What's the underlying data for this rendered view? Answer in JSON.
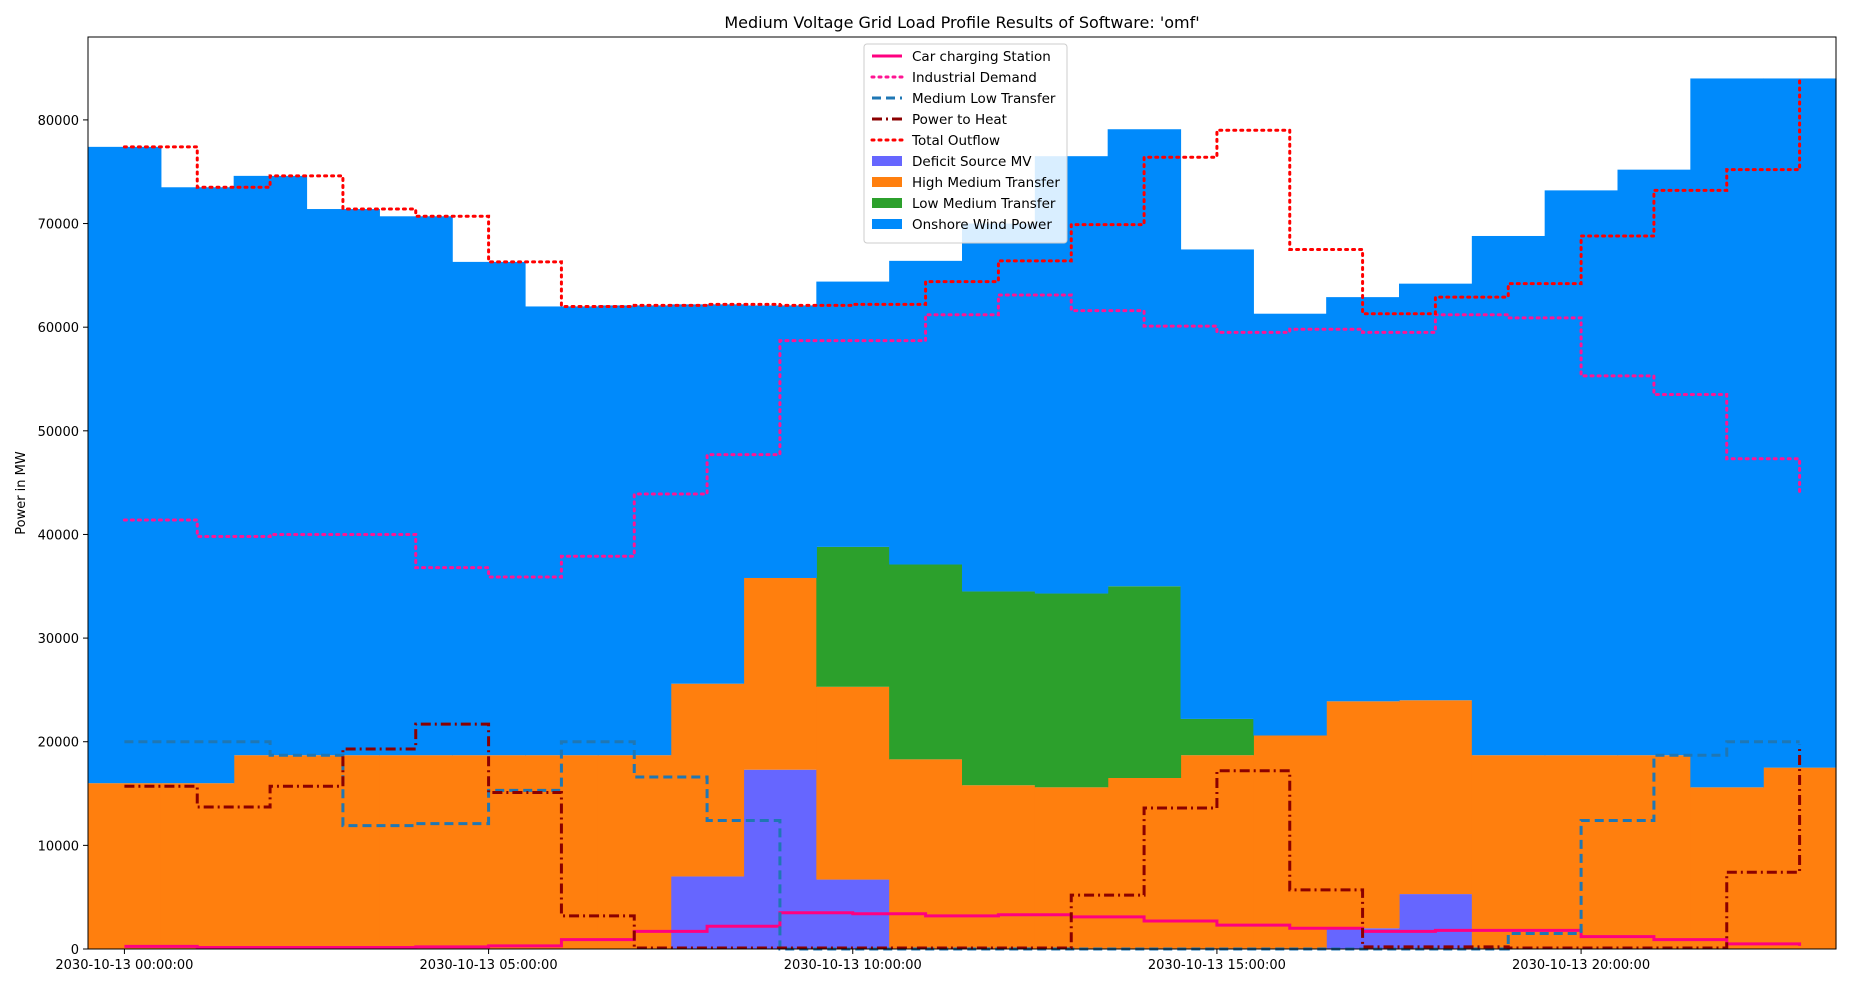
{
  "chart_data": {
    "type": "area",
    "title": "Medium Voltage Grid Load Profile Results of Software: 'omf'",
    "ylabel": "Power in MW",
    "xlabel": "",
    "ylim": [
      0,
      88000
    ],
    "x_hours": [
      0,
      1,
      2,
      3,
      4,
      5,
      6,
      7,
      8,
      9,
      10,
      11,
      12,
      13,
      14,
      15,
      16,
      17,
      18,
      19,
      20,
      21,
      22,
      23
    ],
    "xtick_hours": [
      0,
      5,
      10,
      15,
      20
    ],
    "xtick_labels": [
      "2030-10-13 00:00:00",
      "2030-10-13 05:00:00",
      "2030-10-13 10:00:00",
      "2030-10-13 15:00:00",
      "2030-10-13 20:00:00"
    ],
    "yticks": [
      0,
      10000,
      20000,
      30000,
      40000,
      50000,
      60000,
      70000,
      80000
    ],
    "ytick_labels": [
      "0",
      "10000",
      "20000",
      "30000",
      "40000",
      "50000",
      "60000",
      "70000",
      "80000"
    ],
    "grid": false,
    "legend_position": "upper-center",
    "stack": [
      {
        "name": "Deficit Source MV",
        "color": "#6666ff",
        "values": [
          0,
          0,
          0,
          0,
          0,
          0,
          0,
          0,
          7000,
          17300,
          6700,
          0,
          0,
          0,
          0,
          0,
          0,
          2000,
          5300,
          0,
          0,
          0,
          0,
          0
        ]
      },
      {
        "name": "High Medium Transfer",
        "color": "#ff7f0e",
        "values": [
          16000,
          16000,
          18700,
          18700,
          18700,
          18700,
          18700,
          18700,
          18600,
          18500,
          18600,
          18300,
          15800,
          15600,
          16500,
          18700,
          20600,
          21900,
          18700,
          18700,
          18700,
          18700,
          15600,
          17500
        ]
      },
      {
        "name": "Low Medium Transfer",
        "color": "#2ca02c",
        "values": [
          0,
          0,
          0,
          0,
          0,
          0,
          0,
          0,
          0,
          0,
          13500,
          18800,
          18700,
          18700,
          18500,
          3500,
          0,
          0,
          0,
          0,
          0,
          0,
          0,
          0
        ]
      },
      {
        "name": "Onshore Wind Power",
        "color": "#008afb",
        "values": [
          61400,
          57500,
          55900,
          52700,
          52000,
          47600,
          43300,
          43400,
          36600,
          26300,
          25600,
          29300,
          35500,
          42200,
          44100,
          45300,
          40700,
          39000,
          40200,
          50100,
          54500,
          56500,
          68400,
          66500
        ]
      }
    ],
    "lines": [
      {
        "name": "Car charging Station",
        "color": "#ff0080",
        "style": "solid",
        "values": [
          250,
          150,
          150,
          150,
          200,
          300,
          900,
          1700,
          2200,
          3500,
          3400,
          3200,
          3300,
          3100,
          2700,
          2300,
          2000,
          1700,
          1800,
          1800,
          1200,
          900,
          500,
          300
        ]
      },
      {
        "name": "Industrial Demand",
        "color": "#ff1493",
        "style": "dotted",
        "values": [
          41400,
          39800,
          40000,
          40000,
          36800,
          35900,
          37900,
          43900,
          47700,
          58700,
          58700,
          61200,
          63100,
          61600,
          60100,
          59500,
          59800,
          59500,
          61200,
          60900,
          55300,
          53500,
          47300,
          44100
        ]
      },
      {
        "name": "Medium Low Transfer",
        "color": "#1f77b4",
        "style": "dashed",
        "values": [
          20000,
          20000,
          18700,
          11900,
          12100,
          15300,
          20000,
          16600,
          12400,
          0,
          0,
          0,
          0,
          0,
          0,
          0,
          0,
          0,
          0,
          1500,
          12400,
          18700,
          20000,
          20000
        ]
      },
      {
        "name": "Power to Heat",
        "color": "#8b0000",
        "style": "dashdot",
        "values": [
          15700,
          13700,
          15700,
          19300,
          21700,
          15100,
          3200,
          100,
          100,
          100,
          100,
          100,
          100,
          5200,
          13600,
          17200,
          5700,
          200,
          200,
          100,
          100,
          100,
          7400,
          19700
        ]
      },
      {
        "name": "Total Outflow",
        "color": "#ff0000",
        "style": "dotted",
        "values": [
          77400,
          73500,
          74600,
          71400,
          70700,
          66300,
          62000,
          62100,
          62200,
          62100,
          62200,
          64400,
          66400,
          69900,
          76400,
          79000,
          67500,
          61300,
          62900,
          64200,
          68800,
          73200,
          75200,
          84000
        ]
      }
    ],
    "legend": [
      "Car charging Station",
      "Industrial Demand",
      "Medium Low Transfer",
      "Power to Heat",
      "Total Outflow",
      "Deficit Source MV",
      "High Medium Transfer",
      "Low Medium Transfer",
      "Onshore Wind Power"
    ]
  }
}
